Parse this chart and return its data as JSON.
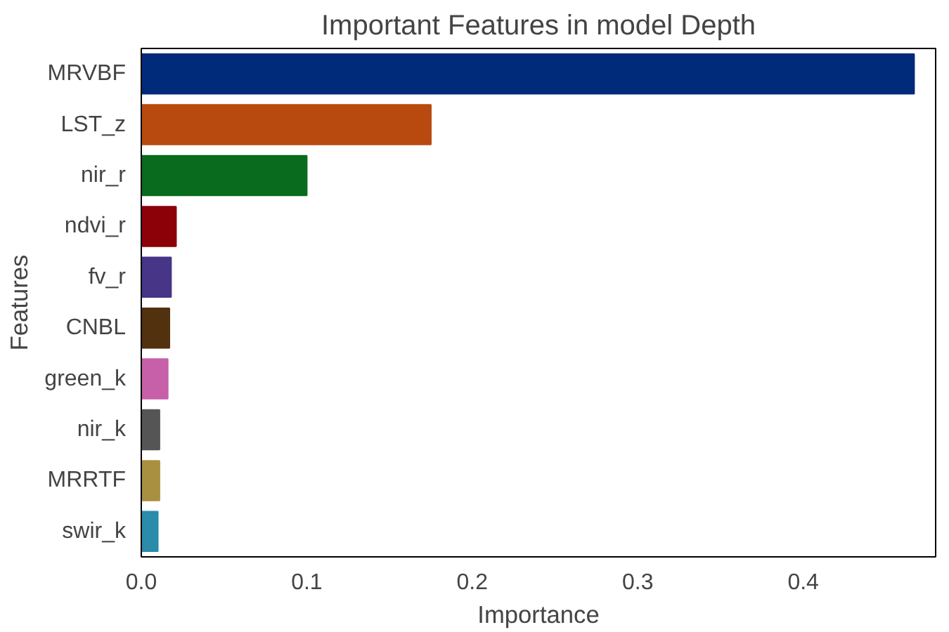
{
  "chart_data": {
    "type": "bar",
    "orientation": "horizontal",
    "title": "Important Features in model Depth",
    "xlabel": "Importance",
    "ylabel": "Features",
    "categories": [
      "MRVBF",
      "LST_z",
      "nir_r",
      "ndvi_r",
      "fv_r",
      "CNBL",
      "green_k",
      "nir_k",
      "MRRTF",
      "swir_k"
    ],
    "values": [
      0.467,
      0.175,
      0.1,
      0.021,
      0.018,
      0.017,
      0.016,
      0.011,
      0.011,
      0.01
    ],
    "colors": [
      "#002a7a",
      "#b84a10",
      "#086b1d",
      "#8c0008",
      "#473588",
      "#52310f",
      "#c75fa9",
      "#555555",
      "#a89040",
      "#2a8bab"
    ],
    "xlim": [
      0,
      0.48
    ],
    "xticks": [
      {
        "value": 0,
        "label": "0.0"
      },
      0.1,
      0.2,
      0.3,
      0.4
    ],
    "grid": false
  }
}
